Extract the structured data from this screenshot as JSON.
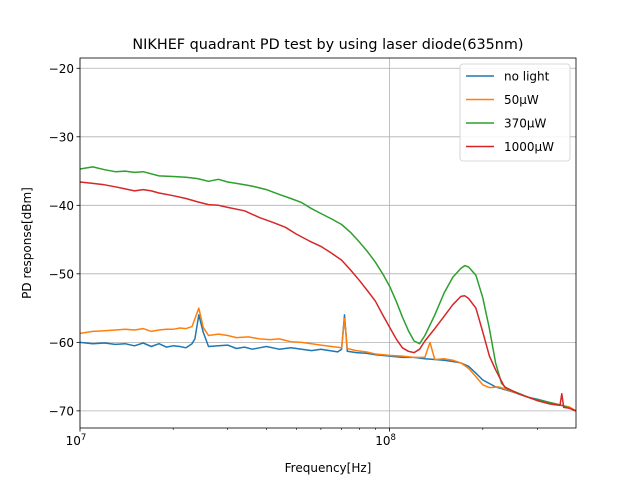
{
  "chart_data": {
    "type": "line",
    "title": "NIKHEF quadrant PD test by using laser diode(635nm)",
    "xlabel": "Frequency[Hz]",
    "ylabel": "PD response[dBm]",
    "xscale": "log",
    "xlim": [
      10000000,
      400000000
    ],
    "ylim": [
      -72.5,
      -18.5
    ],
    "x_ticks": [
      {
        "value": 10000000,
        "base": "10",
        "exp": "7"
      },
      {
        "value": 100000000,
        "base": "10",
        "exp": "8"
      }
    ],
    "y_ticks": [
      -20,
      -30,
      -40,
      -50,
      -60,
      -70
    ],
    "y_tick_labels": [
      "−20",
      "−30",
      "−40",
      "−50",
      "−60",
      "−70"
    ],
    "grid": true,
    "legend_position": "upper right",
    "series": [
      {
        "name": "no light",
        "color": "#1f77b4",
        "points": [
          [
            10000000,
            -60.0
          ],
          [
            11000000,
            -60.2
          ],
          [
            12000000,
            -60.1
          ],
          [
            13000000,
            -60.3
          ],
          [
            14000000,
            -60.2
          ],
          [
            15000000,
            -60.5
          ],
          [
            16000000,
            -60.1
          ],
          [
            17000000,
            -60.6
          ],
          [
            18000000,
            -60.2
          ],
          [
            19000000,
            -60.7
          ],
          [
            20000000,
            -60.5
          ],
          [
            21000000,
            -60.6
          ],
          [
            22000000,
            -60.8
          ],
          [
            23000000,
            -60.2
          ],
          [
            23500000,
            -59.5
          ],
          [
            24200000,
            -56.0
          ],
          [
            25000000,
            -58.5
          ],
          [
            26000000,
            -60.6
          ],
          [
            28000000,
            -60.5
          ],
          [
            30000000,
            -60.4
          ],
          [
            32000000,
            -60.9
          ],
          [
            34000000,
            -60.7
          ],
          [
            36000000,
            -61.0
          ],
          [
            38000000,
            -60.8
          ],
          [
            40000000,
            -60.6
          ],
          [
            44000000,
            -61.0
          ],
          [
            48000000,
            -60.8
          ],
          [
            52000000,
            -61.0
          ],
          [
            56000000,
            -61.2
          ],
          [
            60000000,
            -61.0
          ],
          [
            64000000,
            -61.2
          ],
          [
            68000000,
            -61.4
          ],
          [
            70000000,
            -61.0
          ],
          [
            71500000,
            -56.0
          ],
          [
            73000000,
            -61.3
          ],
          [
            78000000,
            -61.5
          ],
          [
            84000000,
            -61.6
          ],
          [
            90000000,
            -61.8
          ],
          [
            100000000,
            -62.0
          ],
          [
            110000000,
            -62.2
          ],
          [
            120000000,
            -62.2
          ],
          [
            130000000,
            -62.4
          ],
          [
            140000000,
            -62.5
          ],
          [
            150000000,
            -62.6
          ],
          [
            160000000,
            -62.8
          ],
          [
            170000000,
            -63.0
          ],
          [
            180000000,
            -63.5
          ],
          [
            190000000,
            -64.5
          ],
          [
            200000000,
            -65.5
          ],
          [
            210000000,
            -66.0
          ],
          [
            220000000,
            -66.5
          ],
          [
            240000000,
            -67.0
          ],
          [
            260000000,
            -67.5
          ],
          [
            280000000,
            -68.0
          ],
          [
            300000000,
            -68.3
          ],
          [
            330000000,
            -68.8
          ],
          [
            360000000,
            -69.2
          ],
          [
            380000000,
            -69.6
          ],
          [
            400000000,
            -70.0
          ]
        ]
      },
      {
        "name": "50μW",
        "color": "#ff7f0e",
        "points": [
          [
            10000000,
            -58.7
          ],
          [
            11000000,
            -58.4
          ],
          [
            12000000,
            -58.3
          ],
          [
            13000000,
            -58.2
          ],
          [
            14000000,
            -58.1
          ],
          [
            15000000,
            -58.2
          ],
          [
            16000000,
            -58.0
          ],
          [
            17000000,
            -58.4
          ],
          [
            18000000,
            -58.2
          ],
          [
            19000000,
            -58.1
          ],
          [
            20000000,
            -58.1
          ],
          [
            21000000,
            -57.9
          ],
          [
            22000000,
            -58.0
          ],
          [
            23000000,
            -57.7
          ],
          [
            24200000,
            -55.0
          ],
          [
            25000000,
            -57.8
          ],
          [
            26000000,
            -59.0
          ],
          [
            28000000,
            -58.8
          ],
          [
            30000000,
            -59.0
          ],
          [
            32000000,
            -59.3
          ],
          [
            35000000,
            -59.2
          ],
          [
            38000000,
            -59.5
          ],
          [
            41000000,
            -59.6
          ],
          [
            44000000,
            -59.5
          ],
          [
            48000000,
            -59.9
          ],
          [
            52000000,
            -60.0
          ],
          [
            56000000,
            -60.2
          ],
          [
            60000000,
            -60.4
          ],
          [
            65000000,
            -60.6
          ],
          [
            70000000,
            -60.8
          ],
          [
            71500000,
            -56.5
          ],
          [
            73000000,
            -60.9
          ],
          [
            78000000,
            -61.2
          ],
          [
            84000000,
            -61.4
          ],
          [
            90000000,
            -61.7
          ],
          [
            100000000,
            -61.9
          ],
          [
            110000000,
            -62.0
          ],
          [
            120000000,
            -62.2
          ],
          [
            130000000,
            -62.2
          ],
          [
            135000000,
            -60.0
          ],
          [
            140000000,
            -62.5
          ],
          [
            150000000,
            -62.4
          ],
          [
            160000000,
            -62.6
          ],
          [
            170000000,
            -63.0
          ],
          [
            180000000,
            -63.8
          ],
          [
            190000000,
            -65.0
          ],
          [
            200000000,
            -66.2
          ],
          [
            210000000,
            -66.6
          ],
          [
            225000000,
            -66.5
          ],
          [
            240000000,
            -66.9
          ],
          [
            260000000,
            -67.5
          ],
          [
            280000000,
            -68.0
          ],
          [
            300000000,
            -68.5
          ],
          [
            330000000,
            -68.8
          ],
          [
            360000000,
            -69.2
          ],
          [
            380000000,
            -69.4
          ],
          [
            400000000,
            -70.0
          ]
        ]
      },
      {
        "name": "370μW",
        "color": "#2ca02c",
        "points": [
          [
            10000000,
            -34.7
          ],
          [
            11000000,
            -34.4
          ],
          [
            12000000,
            -34.8
          ],
          [
            13000000,
            -35.1
          ],
          [
            14000000,
            -35.0
          ],
          [
            15000000,
            -35.2
          ],
          [
            16000000,
            -35.1
          ],
          [
            18000000,
            -35.7
          ],
          [
            20000000,
            -35.8
          ],
          [
            22000000,
            -35.9
          ],
          [
            24000000,
            -36.1
          ],
          [
            26000000,
            -36.5
          ],
          [
            28000000,
            -36.2
          ],
          [
            30000000,
            -36.6
          ],
          [
            32000000,
            -36.8
          ],
          [
            34000000,
            -37.0
          ],
          [
            36000000,
            -37.2
          ],
          [
            40000000,
            -37.7
          ],
          [
            44000000,
            -38.4
          ],
          [
            48000000,
            -39.0
          ],
          [
            52000000,
            -39.6
          ],
          [
            56000000,
            -40.5
          ],
          [
            60000000,
            -41.2
          ],
          [
            65000000,
            -42.0
          ],
          [
            70000000,
            -42.8
          ],
          [
            75000000,
            -44.0
          ],
          [
            80000000,
            -45.4
          ],
          [
            85000000,
            -46.8
          ],
          [
            90000000,
            -48.3
          ],
          [
            95000000,
            -50.0
          ],
          [
            100000000,
            -51.8
          ],
          [
            105000000,
            -54.0
          ],
          [
            110000000,
            -56.3
          ],
          [
            115000000,
            -58.3
          ],
          [
            120000000,
            -59.8
          ],
          [
            125000000,
            -60.2
          ],
          [
            130000000,
            -59.0
          ],
          [
            140000000,
            -56.0
          ],
          [
            150000000,
            -52.8
          ],
          [
            160000000,
            -50.5
          ],
          [
            170000000,
            -49.2
          ],
          [
            175000000,
            -48.8
          ],
          [
            180000000,
            -49.0
          ],
          [
            190000000,
            -50.2
          ],
          [
            200000000,
            -53.5
          ],
          [
            210000000,
            -58.0
          ],
          [
            220000000,
            -63.0
          ],
          [
            230000000,
            -66.0
          ],
          [
            240000000,
            -66.8
          ],
          [
            260000000,
            -67.4
          ],
          [
            280000000,
            -68.0
          ],
          [
            300000000,
            -68.4
          ],
          [
            330000000,
            -68.8
          ],
          [
            360000000,
            -69.2
          ],
          [
            380000000,
            -69.6
          ],
          [
            400000000,
            -70.0
          ]
        ]
      },
      {
        "name": "1000μW",
        "color": "#d62728",
        "points": [
          [
            10000000,
            -36.6
          ],
          [
            11000000,
            -36.8
          ],
          [
            12000000,
            -37.0
          ],
          [
            13000000,
            -37.3
          ],
          [
            14000000,
            -37.6
          ],
          [
            15000000,
            -37.9
          ],
          [
            16000000,
            -37.7
          ],
          [
            17000000,
            -37.9
          ],
          [
            18000000,
            -38.2
          ],
          [
            20000000,
            -38.6
          ],
          [
            22000000,
            -39.0
          ],
          [
            24000000,
            -39.5
          ],
          [
            26000000,
            -39.9
          ],
          [
            28000000,
            -40.0
          ],
          [
            30000000,
            -40.3
          ],
          [
            34000000,
            -40.8
          ],
          [
            38000000,
            -41.8
          ],
          [
            42000000,
            -42.5
          ],
          [
            46000000,
            -43.2
          ],
          [
            50000000,
            -44.2
          ],
          [
            55000000,
            -45.2
          ],
          [
            60000000,
            -46.0
          ],
          [
            65000000,
            -47.0
          ],
          [
            70000000,
            -48.0
          ],
          [
            75000000,
            -49.5
          ],
          [
            80000000,
            -51.0
          ],
          [
            85000000,
            -52.5
          ],
          [
            90000000,
            -54.0
          ],
          [
            95000000,
            -56.0
          ],
          [
            100000000,
            -57.8
          ],
          [
            105000000,
            -59.5
          ],
          [
            110000000,
            -60.8
          ],
          [
            115000000,
            -61.3
          ],
          [
            120000000,
            -61.5
          ],
          [
            125000000,
            -61.0
          ],
          [
            130000000,
            -59.8
          ],
          [
            140000000,
            -58.0
          ],
          [
            150000000,
            -56.2
          ],
          [
            160000000,
            -54.5
          ],
          [
            170000000,
            -53.3
          ],
          [
            175000000,
            -53.2
          ],
          [
            180000000,
            -53.6
          ],
          [
            190000000,
            -55.0
          ],
          [
            200000000,
            -58.5
          ],
          [
            210000000,
            -62.0
          ],
          [
            220000000,
            -64.0
          ],
          [
            235000000,
            -66.5
          ],
          [
            260000000,
            -67.5
          ],
          [
            280000000,
            -68.0
          ],
          [
            300000000,
            -68.5
          ],
          [
            330000000,
            -69.0
          ],
          [
            355000000,
            -69.2
          ],
          [
            360000000,
            -67.5
          ],
          [
            365000000,
            -69.5
          ],
          [
            380000000,
            -69.6
          ],
          [
            400000000,
            -70.0
          ]
        ]
      }
    ]
  }
}
